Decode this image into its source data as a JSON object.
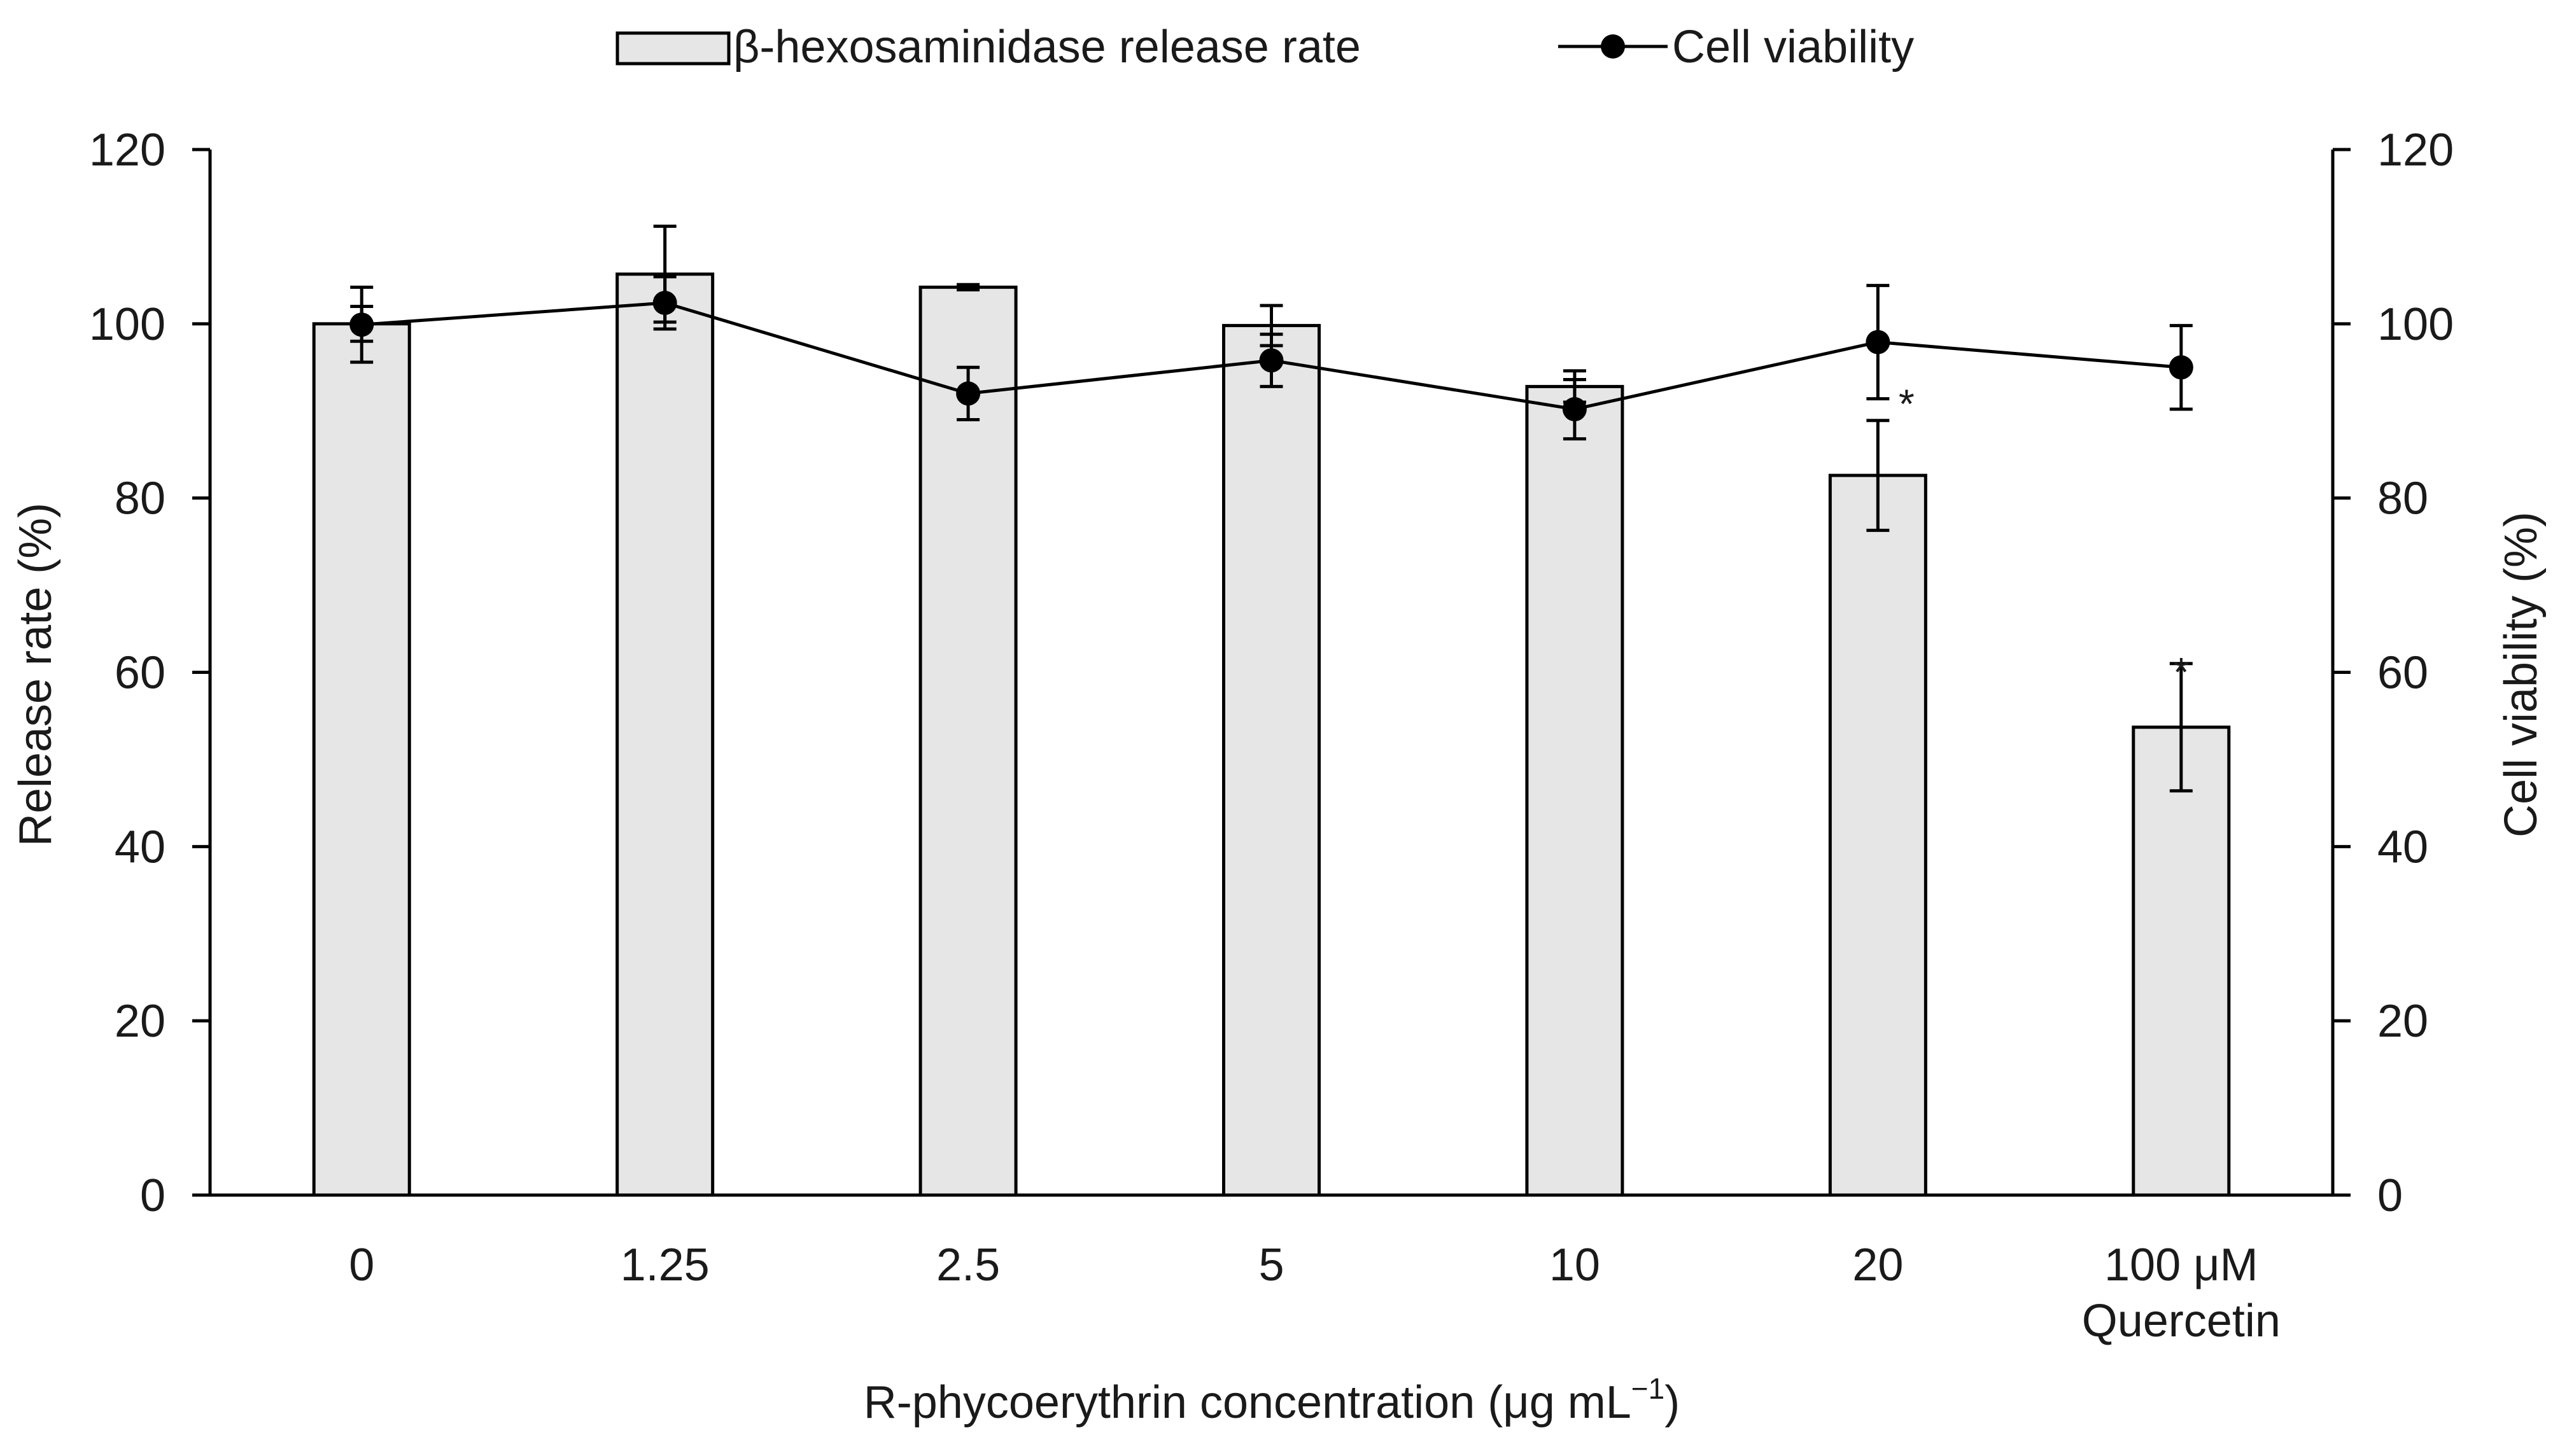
{
  "chart_data": {
    "type": "bar+line",
    "title": "",
    "categories": [
      "0",
      "1.25",
      "2.5",
      "5",
      "10",
      "20",
      "100 μM\nQuercetin"
    ],
    "xlabel_main": "R-phycoerythrin concentration (μg mL",
    "xlabel_sup": "−1",
    "xlabel_end": ")",
    "ylabel": "Release rate (%)",
    "y2label": "Cell viability (%)",
    "ylim": [
      0,
      120
    ],
    "y2lim": [
      0,
      120
    ],
    "yticks": [
      "0",
      "20",
      "40",
      "60",
      "80",
      "100",
      "120"
    ],
    "y2ticks": [
      "0",
      "20",
      "40",
      "60",
      "80",
      "100",
      "120"
    ],
    "series": [
      {
        "name": "β-hexosaminidase release rate",
        "kind": "bar",
        "axis": "left",
        "values": [
          100,
          105.7,
          104.2,
          99.8,
          92.8,
          82.6,
          53.7
        ],
        "errors": [
          2.0,
          5.5,
          0.3,
          2.3,
          1.8,
          6.3,
          7.3
        ],
        "color": "#e6e6e6",
        "edge": "#000000"
      },
      {
        "name": "Cell viability",
        "kind": "line",
        "axis": "right",
        "values": [
          99.9,
          102.4,
          92.0,
          95.8,
          90.2,
          97.9,
          95.0
        ],
        "errors": [
          4.3,
          3.0,
          3.0,
          3.0,
          3.4,
          6.5,
          4.8
        ],
        "color": "#000000"
      }
    ],
    "annotations": [
      {
        "category_index": 5,
        "text": "*"
      },
      {
        "category_index": 6,
        "text": "*"
      }
    ],
    "legend": "top-center"
  }
}
